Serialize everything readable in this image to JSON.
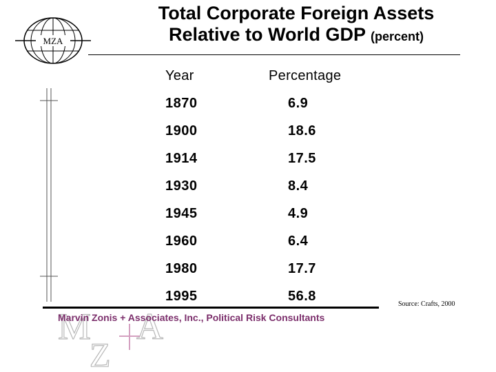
{
  "logo": {
    "text": "MZA"
  },
  "title": {
    "line1": "Total Corporate Foreign Assets",
    "line2": "Relative to World GDP",
    "unit": "(percent)"
  },
  "table": {
    "headers": [
      "Year",
      "Percentage"
    ],
    "rows": [
      [
        "1870",
        "6.9"
      ],
      [
        "1900",
        "18.6"
      ],
      [
        "1914",
        "17.5"
      ],
      [
        "1930",
        "8.4"
      ],
      [
        "1945",
        "4.9"
      ],
      [
        "1960",
        "6.4"
      ],
      [
        "1980",
        "17.7"
      ],
      [
        "1995",
        "56.8"
      ]
    ]
  },
  "source": "Source: Crafts, 2000",
  "footer": "Marvin Zonis + Associates, Inc., Political Risk Consultants",
  "watermark": {
    "letters": [
      "M",
      "Z",
      "A"
    ]
  },
  "colors": {
    "footer_text": "#7b2e6b",
    "watermark_gray": "#b8b8b8"
  }
}
